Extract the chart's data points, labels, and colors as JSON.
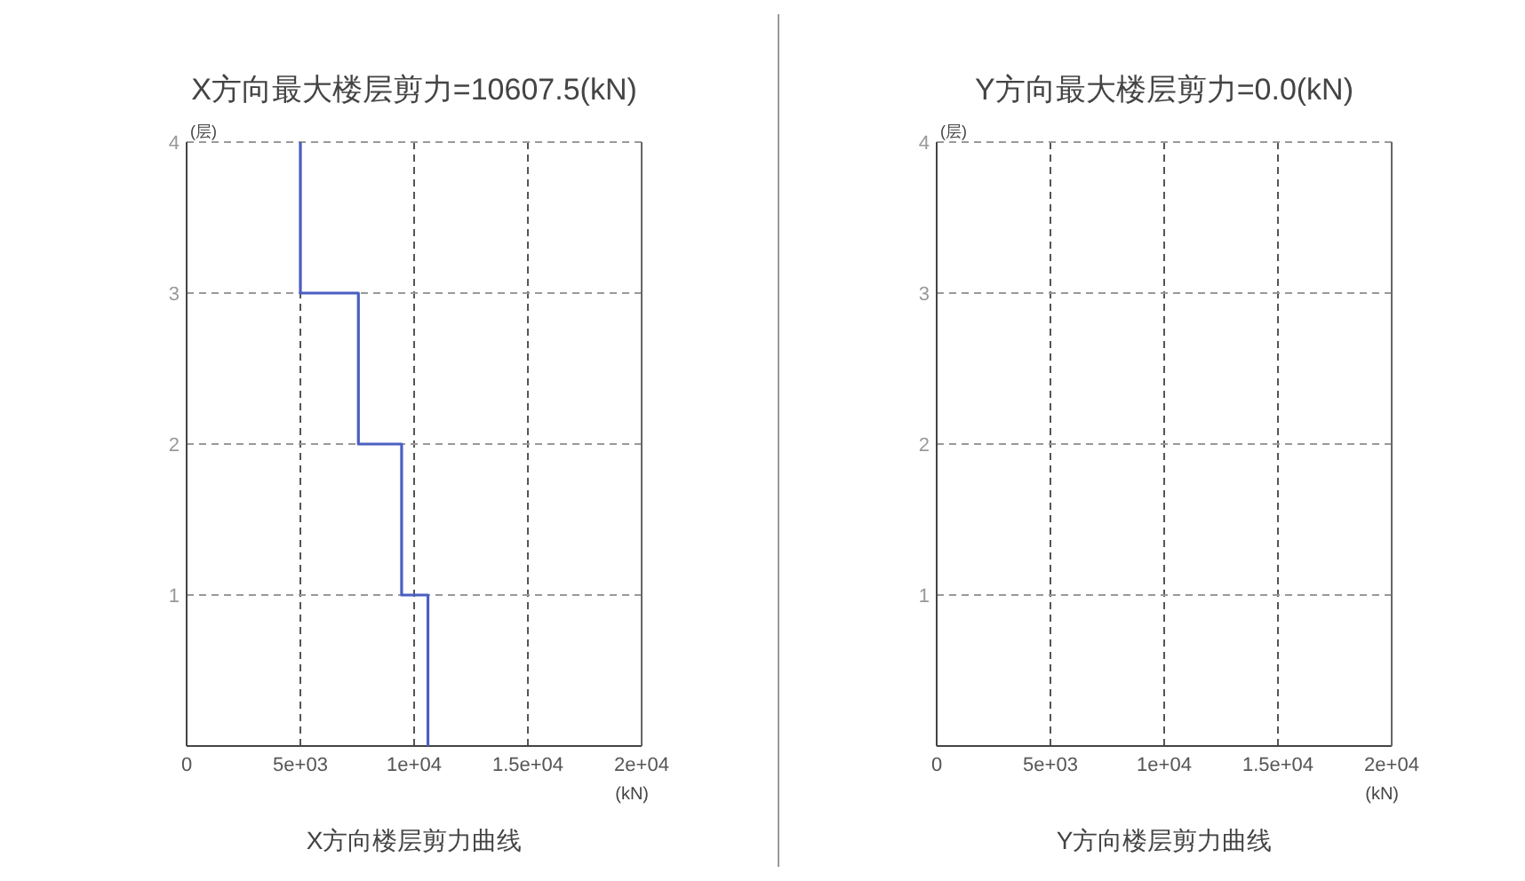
{
  "chart_data": [
    {
      "type": "line",
      "title": "X方向最大楼层剪力=10607.5(kN)",
      "xlabel": "(kN)",
      "ylabel": "(层)",
      "annotations": [
        "X方向楼层剪力曲线"
      ],
      "series": [
        {
          "color": "#4a5fc1",
          "x": [
            10607.5,
            10607.5,
            9450,
            9450,
            7550,
            7550,
            5000,
            5000
          ],
          "values": [
            0,
            1,
            1,
            2,
            2,
            3,
            3,
            4
          ]
        }
      ],
      "xlim": [
        0,
        20000
      ],
      "xticks": [
        0,
        {
          "value": 5000,
          "label": "5e+03"
        },
        {
          "value": 10000,
          "label": "1e+04"
        },
        {
          "value": 15000,
          "label": "1.5e+04"
        },
        {
          "value": 20000,
          "label": "2e+04"
        }
      ],
      "ylim": [
        0,
        4
      ],
      "yticks": [
        1,
        2,
        3,
        4
      ],
      "grid": true
    },
    {
      "type": "line",
      "title": "Y方向最大楼层剪力=0.0(kN)",
      "xlabel": "(kN)",
      "ylabel": "(层)",
      "annotations": [
        "Y方向楼层剪力曲线"
      ],
      "xlim": [
        0,
        20000
      ],
      "xticks": [
        0,
        {
          "value": 5000,
          "label": "5e+03"
        },
        {
          "value": 10000,
          "label": "1e+04"
        },
        {
          "value": 15000,
          "label": "1.5e+04"
        },
        {
          "value": 20000,
          "label": "2e+04"
        }
      ],
      "ylim": [
        0,
        4
      ],
      "yticks": [
        1,
        2,
        3,
        4
      ],
      "grid": true
    }
  ]
}
